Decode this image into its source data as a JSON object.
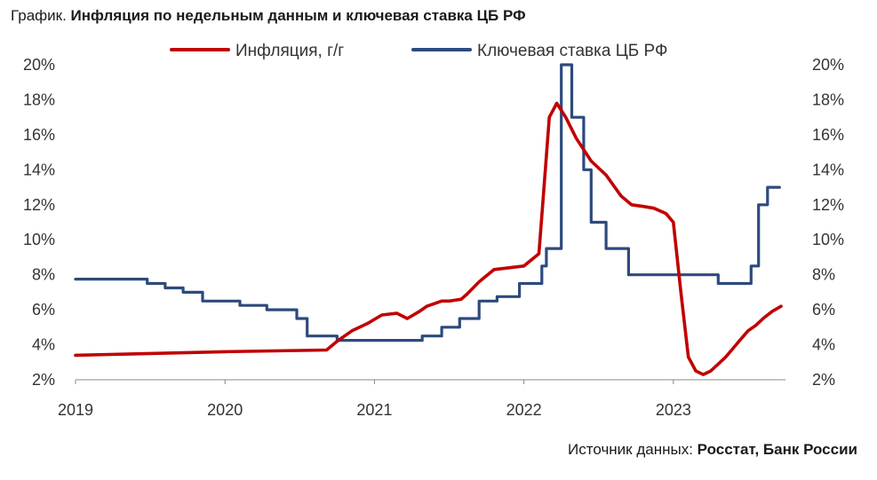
{
  "title": {
    "prefix": "График.",
    "text": "Инфляция по недельным данным и ключевая ставка ЦБ РФ"
  },
  "source": {
    "prefix": "Источник данных:",
    "text": "Росстат, Банк России"
  },
  "colors": {
    "inflation": "#c00000",
    "key_rate": "#2e4a7d",
    "axis": "#888888",
    "text": "#333333"
  },
  "chart_data": {
    "type": "line",
    "title": "Инфляция по недельным данным и ключевая ставка ЦБ РФ",
    "xlabel": "",
    "ylabel": "",
    "xlim": [
      2019.0,
      2023.75
    ],
    "ylim": [
      2,
      20
    ],
    "x_ticks": [
      2019,
      2020,
      2021,
      2022,
      2023
    ],
    "x_tick_labels": [
      "2019",
      "2020",
      "2021",
      "2022",
      "2023"
    ],
    "y_ticks": [
      2,
      4,
      6,
      8,
      10,
      12,
      14,
      16,
      18,
      20
    ],
    "y_tick_labels": [
      "2%",
      "4%",
      "6%",
      "8%",
      "10%",
      "12%",
      "14%",
      "16%",
      "18%",
      "20%"
    ],
    "grid": false,
    "legend_position": "top-center",
    "series": [
      {
        "name": "Инфляция, г/г",
        "style": "line",
        "color": "#c00000",
        "x": [
          2019.0,
          2020.0,
          2020.68,
          2020.75,
          2020.85,
          2020.95,
          2021.05,
          2021.15,
          2021.22,
          2021.3,
          2021.35,
          2021.45,
          2021.5,
          2021.58,
          2021.62,
          2021.7,
          2021.8,
          2021.9,
          2022.0,
          2022.1,
          2022.13,
          2022.17,
          2022.22,
          2022.28,
          2022.35,
          2022.45,
          2022.55,
          2022.65,
          2022.72,
          2022.8,
          2022.87,
          2022.95,
          2023.0,
          2023.05,
          2023.1,
          2023.15,
          2023.2,
          2023.25,
          2023.3,
          2023.35,
          2023.4,
          2023.45,
          2023.5,
          2023.55,
          2023.6,
          2023.66,
          2023.72
        ],
        "y": [
          3.4,
          3.6,
          3.7,
          4.2,
          4.8,
          5.2,
          5.7,
          5.8,
          5.5,
          5.9,
          6.2,
          6.5,
          6.5,
          6.6,
          6.9,
          7.6,
          8.3,
          8.4,
          8.5,
          9.2,
          12.5,
          17.0,
          17.8,
          17.0,
          15.8,
          14.5,
          13.7,
          12.5,
          12.0,
          11.9,
          11.8,
          11.5,
          11.0,
          7.0,
          3.3,
          2.5,
          2.3,
          2.5,
          2.9,
          3.3,
          3.8,
          4.3,
          4.8,
          5.1,
          5.5,
          5.9,
          6.2
        ]
      },
      {
        "name": "Ключевая ставка ЦБ РФ",
        "style": "step",
        "color": "#2e4a7d",
        "x": [
          2019.0,
          2019.38,
          2019.48,
          2019.6,
          2019.72,
          2019.85,
          2020.1,
          2020.28,
          2020.48,
          2020.55,
          2020.75,
          2021.22,
          2021.32,
          2021.45,
          2021.57,
          2021.7,
          2021.82,
          2021.97,
          2022.12,
          2022.15,
          2022.25,
          2022.32,
          2022.4,
          2022.45,
          2022.55,
          2022.7,
          2023.3,
          2023.4,
          2023.52,
          2023.57,
          2023.63,
          2023.71
        ],
        "y": [
          7.75,
          7.75,
          7.5,
          7.25,
          7.0,
          6.5,
          6.25,
          6.0,
          5.5,
          4.5,
          4.25,
          4.25,
          4.5,
          5.0,
          5.5,
          6.5,
          6.75,
          7.5,
          8.5,
          9.5,
          20.0,
          17.0,
          14.0,
          11.0,
          9.5,
          8.0,
          7.5,
          7.5,
          8.5,
          12.0,
          13.0,
          13.0
        ]
      }
    ]
  }
}
